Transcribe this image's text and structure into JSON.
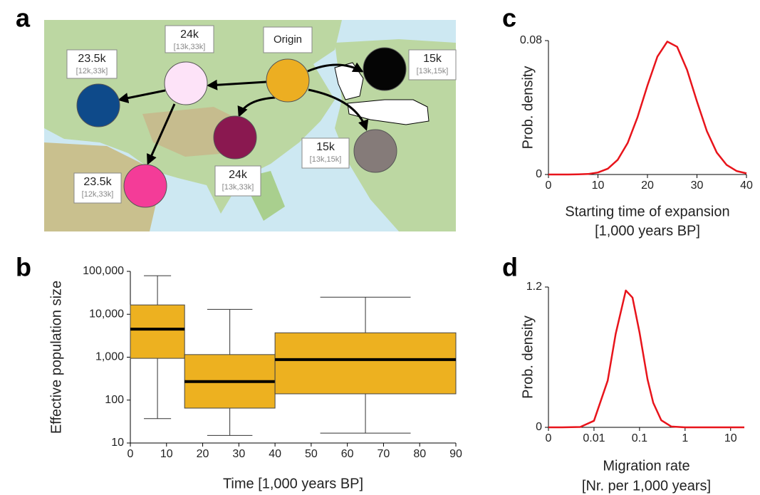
{
  "map": {
    "panel": "a",
    "nodes": [
      {
        "label": "Origin",
        "color": "#ecae22"
      },
      {
        "label": "24k",
        "interval": "[13k,33k]",
        "color": "#fde3f8"
      },
      {
        "label": "23.5k",
        "interval": "[12k,33k]",
        "color": "#0e4a8a"
      },
      {
        "label": "15k",
        "interval": "[13k,15k]",
        "color": "#050505"
      },
      {
        "label": "24k",
        "interval": "[13k,33k]",
        "color": "#8a1850"
      },
      {
        "label": "23.5k",
        "interval": "[12k,33k]",
        "color": "#f43c98"
      },
      {
        "label": "15k",
        "interval": "[13k,15k]",
        "color": "#857b79"
      }
    ]
  },
  "chart_data": [
    {
      "type": "box",
      "panel": "b",
      "xlabel": "Time [1,000 years BP]",
      "ylabel": "Effective population size",
      "color": "#edb120",
      "log_y": true,
      "boxes": [
        {
          "x0": 0,
          "x1": 15,
          "min": 37,
          "q1": 940,
          "median": 4500,
          "q3": 16500,
          "max": 79000
        },
        {
          "x0": 15,
          "x1": 40,
          "min": 15,
          "q1": 65,
          "median": 270,
          "q3": 1150,
          "max": 13000
        },
        {
          "x0": 40,
          "x1": 90,
          "min": 17,
          "q1": 140,
          "median": 880,
          "q3": 3700,
          "max": 25000
        }
      ],
      "xlim": [
        0,
        90
      ],
      "xticks": [
        0,
        10,
        20,
        30,
        40,
        50,
        60,
        70,
        80,
        90
      ],
      "ylim": [
        10,
        100000
      ],
      "yticks": [
        10,
        100,
        {
          "value": 1000,
          "label": "1,000"
        },
        {
          "value": 10000,
          "label": "10,000"
        },
        {
          "value": 100000,
          "label": "100,000"
        }
      ]
    },
    {
      "type": "line",
      "panel": "c",
      "xlabel": [
        "Starting time of expansion",
        "[1,000 years BP]"
      ],
      "ylabel": "Prob. density",
      "color": "#e8141b",
      "x": [
        0,
        2,
        4,
        6,
        8,
        10,
        12,
        14,
        16,
        18,
        20,
        22,
        24,
        26,
        28,
        30,
        32,
        34,
        36,
        38,
        40
      ],
      "values": [
        0,
        0,
        2e-05,
        0.0001,
        0.0003,
        0.0012,
        0.0035,
        0.0088,
        0.0188,
        0.0343,
        0.0532,
        0.0704,
        0.0794,
        0.0763,
        0.0625,
        0.0436,
        0.0259,
        0.0131,
        0.0057,
        0.0021,
        0.0007
      ],
      "xlim": [
        0,
        40
      ],
      "xticks": [
        0,
        10,
        20,
        30,
        40
      ],
      "ylim": [
        0,
        0.08
      ],
      "yticks": [
        0,
        0.08
      ]
    },
    {
      "type": "line",
      "panel": "d",
      "xlabel": [
        "Migration rate",
        "[Nr. per 1,000 years]"
      ],
      "ylabel": "Prob. density",
      "color": "#e8141b",
      "log_x": true,
      "x": [
        0.001,
        0.002,
        0.005,
        0.01,
        0.02,
        0.03,
        0.05,
        0.07,
        0.1,
        0.15,
        0.2,
        0.3,
        0.5,
        1,
        2,
        5,
        10,
        20
      ],
      "values": [
        0,
        0,
        0.003,
        0.056,
        0.4,
        0.8,
        1.17,
        1.11,
        0.81,
        0.41,
        0.21,
        0.06,
        0.007,
        0,
        0,
        0,
        0,
        0
      ],
      "xlim": [
        0.001,
        20
      ],
      "xticks": [
        {
          "value": 0.001,
          "label": "0"
        },
        0.01,
        0.1,
        1,
        10
      ],
      "ylim": [
        0,
        1.2
      ],
      "yticks": [
        0,
        1.2
      ]
    }
  ]
}
